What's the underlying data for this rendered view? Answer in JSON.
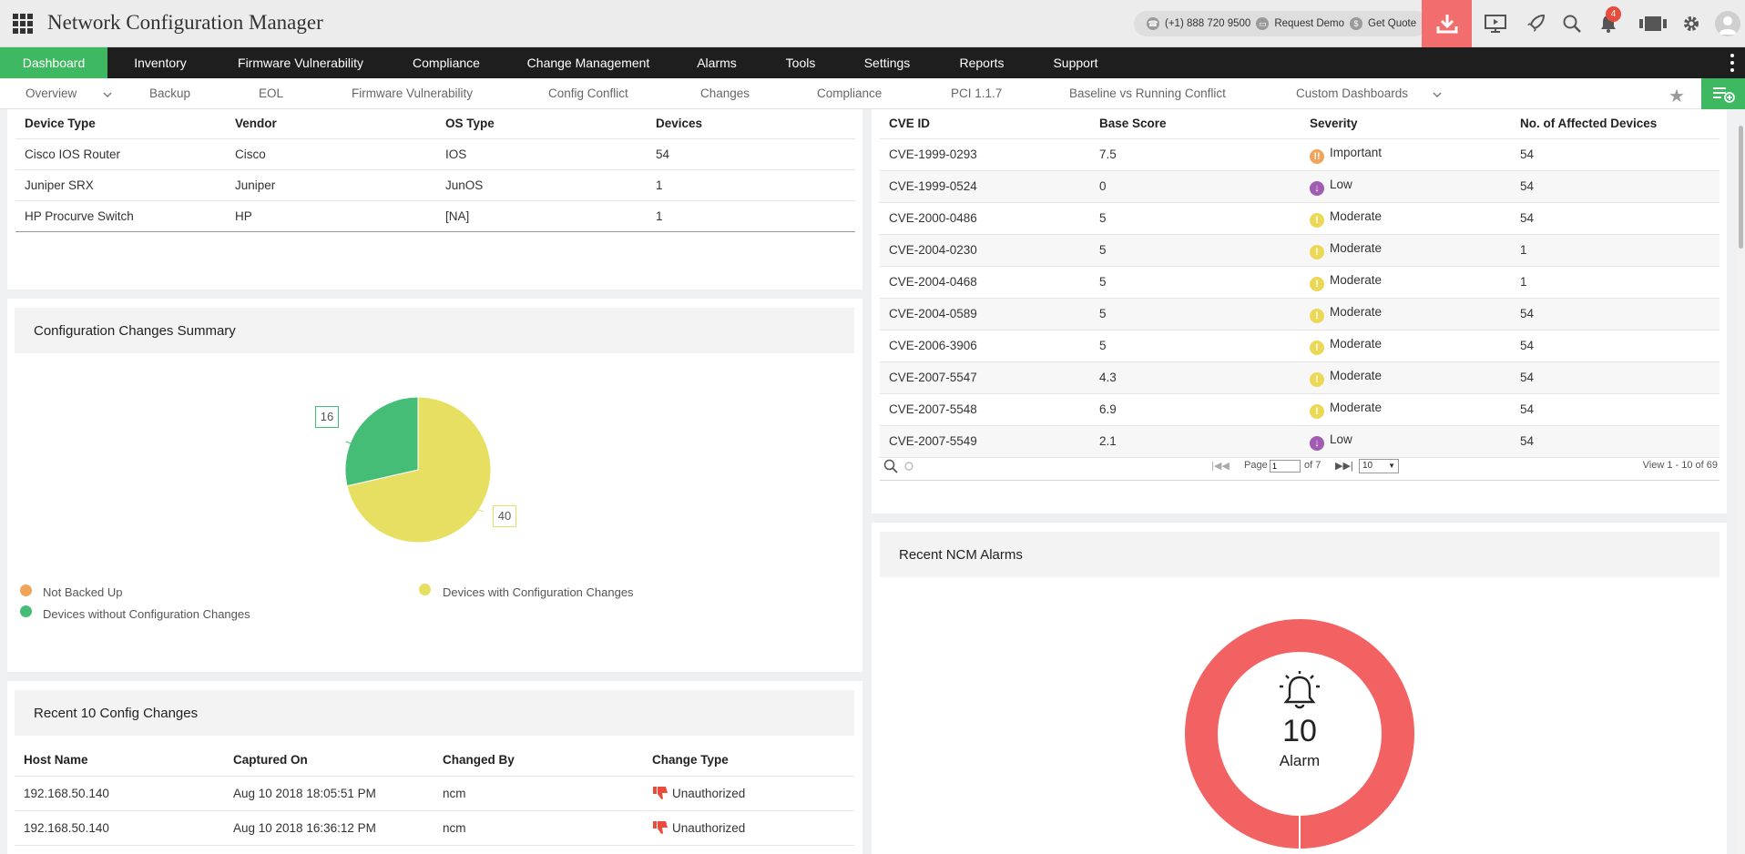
{
  "header": {
    "title": "Network Configuration Manager",
    "phone": "(+1) 888 720 9500",
    "request_demo": "Request Demo",
    "get_quote": "Get Quote",
    "notification_count": "4"
  },
  "mainnav": [
    {
      "label": "Dashboard",
      "active": true
    },
    {
      "label": "Inventory"
    },
    {
      "label": "Firmware Vulnerability"
    },
    {
      "label": "Compliance"
    },
    {
      "label": "Change Management"
    },
    {
      "label": "Alarms"
    },
    {
      "label": "Tools"
    },
    {
      "label": "Settings"
    },
    {
      "label": "Reports"
    },
    {
      "label": "Support"
    }
  ],
  "subnav": [
    "Overview",
    "Backup",
    "EOL",
    "Firmware Vulnerability",
    "Config Conflict",
    "Changes",
    "Compliance",
    "PCI 1.1.7",
    "Baseline vs Running Conflict",
    "Custom Dashboards"
  ],
  "device_table": {
    "columns": [
      "Device Type",
      "Vendor",
      "OS Type",
      "Devices"
    ],
    "rows": [
      [
        "Cisco IOS Router",
        "Cisco",
        "IOS",
        "54"
      ],
      [
        "Juniper SRX",
        "Juniper",
        "JunOS",
        "1"
      ],
      [
        "HP Procurve Switch",
        "HP",
        "[NA]",
        "1"
      ]
    ]
  },
  "config_summary": {
    "title": "Configuration Changes Summary",
    "legend": [
      "Not Backed Up",
      "Devices with Configuration Changes",
      "Devices without Configuration Changes"
    ],
    "colors": {
      "not_backed_up": "#f0a35a",
      "with_changes": "#e6df62",
      "without_changes": "#46bd77"
    }
  },
  "chart_data": {
    "type": "pie",
    "categories": [
      "Not Backed Up",
      "Devices with Configuration Changes",
      "Devices without Configuration Changes"
    ],
    "values": [
      0,
      40,
      16
    ]
  },
  "cve_table": {
    "columns": [
      "CVE ID",
      "Base Score",
      "Severity",
      "No. of Affected Devices"
    ],
    "rows": [
      {
        "id": "CVE-1999-0293",
        "score": "7.5",
        "severity": "Important",
        "devices": "54"
      },
      {
        "id": "CVE-1999-0524",
        "score": "0",
        "severity": "Low",
        "devices": "54"
      },
      {
        "id": "CVE-2000-0486",
        "score": "5",
        "severity": "Moderate",
        "devices": "54"
      },
      {
        "id": "CVE-2004-0230",
        "score": "5",
        "severity": "Moderate",
        "devices": "1"
      },
      {
        "id": "CVE-2004-0468",
        "score": "5",
        "severity": "Moderate",
        "devices": "1"
      },
      {
        "id": "CVE-2004-0589",
        "score": "5",
        "severity": "Moderate",
        "devices": "54"
      },
      {
        "id": "CVE-2006-3906",
        "score": "5",
        "severity": "Moderate",
        "devices": "54"
      },
      {
        "id": "CVE-2007-5547",
        "score": "4.3",
        "severity": "Moderate",
        "devices": "54"
      },
      {
        "id": "CVE-2007-5548",
        "score": "6.9",
        "severity": "Moderate",
        "devices": "54"
      },
      {
        "id": "CVE-2007-5549",
        "score": "2.1",
        "severity": "Low",
        "devices": "54"
      }
    ],
    "pager": {
      "page_label": "Page",
      "page_value": "1",
      "of_label": "of 7",
      "page_size": "10",
      "view_text": "View 1 - 10 of 69"
    },
    "severity_colors": {
      "Important": "#f0a35a",
      "Moderate": "#ecd857",
      "Low": "#a25bb3"
    }
  },
  "recent_changes": {
    "title": "Recent 10 Config Changes",
    "columns": [
      "Host Name",
      "Captured On",
      "Changed By",
      "Change Type"
    ],
    "rows": [
      [
        "192.168.50.140",
        "Aug 10 2018 18:05:51 PM",
        "ncm",
        "Unauthorized"
      ],
      [
        "192.168.50.140",
        "Aug 10 2018 16:36:12 PM",
        "ncm",
        "Unauthorized"
      ]
    ]
  },
  "alarms": {
    "title": "Recent NCM Alarms",
    "count": "10",
    "label": "Alarm",
    "color": "#f26262"
  }
}
